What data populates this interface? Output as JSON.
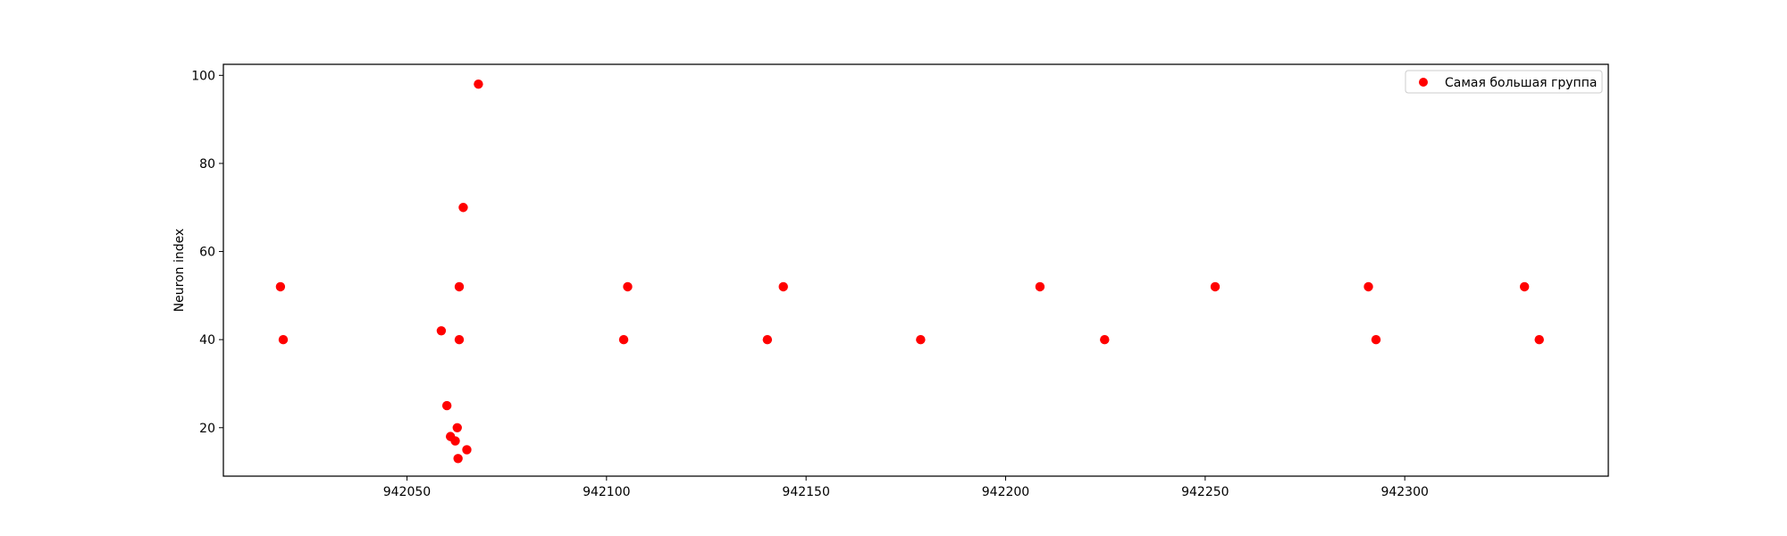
{
  "chart_data": {
    "type": "scatter",
    "title": "",
    "xlabel": "",
    "ylabel": "Neuron index",
    "xlim": [
      942004,
      942351
    ],
    "ylim": [
      9,
      102.5
    ],
    "xticks": [
      942050,
      942100,
      942150,
      942200,
      942250,
      942300
    ],
    "yticks": [
      20,
      40,
      60,
      80,
      100
    ],
    "grid": false,
    "legend_position": "top-right",
    "series": [
      {
        "name": "Самая большая группа",
        "color": "#ff0000",
        "marker": "circle",
        "points": [
          {
            "x": 942018.3,
            "y": 52
          },
          {
            "x": 942019.0,
            "y": 40
          },
          {
            "x": 942058.6,
            "y": 42
          },
          {
            "x": 942060.0,
            "y": 25
          },
          {
            "x": 942060.9,
            "y": 18
          },
          {
            "x": 942062.1,
            "y": 17
          },
          {
            "x": 942062.6,
            "y": 20
          },
          {
            "x": 942062.8,
            "y": 13
          },
          {
            "x": 942063.1,
            "y": 52
          },
          {
            "x": 942063.1,
            "y": 40
          },
          {
            "x": 942064.1,
            "y": 70
          },
          {
            "x": 942065.0,
            "y": 15
          },
          {
            "x": 942067.9,
            "y": 98
          },
          {
            "x": 942104.3,
            "y": 40
          },
          {
            "x": 942105.3,
            "y": 52
          },
          {
            "x": 942140.3,
            "y": 40
          },
          {
            "x": 942144.3,
            "y": 52
          },
          {
            "x": 942178.7,
            "y": 40
          },
          {
            "x": 942208.6,
            "y": 52
          },
          {
            "x": 942224.8,
            "y": 40
          },
          {
            "x": 942252.5,
            "y": 52
          },
          {
            "x": 942290.9,
            "y": 52
          },
          {
            "x": 942292.8,
            "y": 40
          },
          {
            "x": 942330.0,
            "y": 52
          },
          {
            "x": 942333.7,
            "y": 40
          }
        ]
      }
    ]
  }
}
